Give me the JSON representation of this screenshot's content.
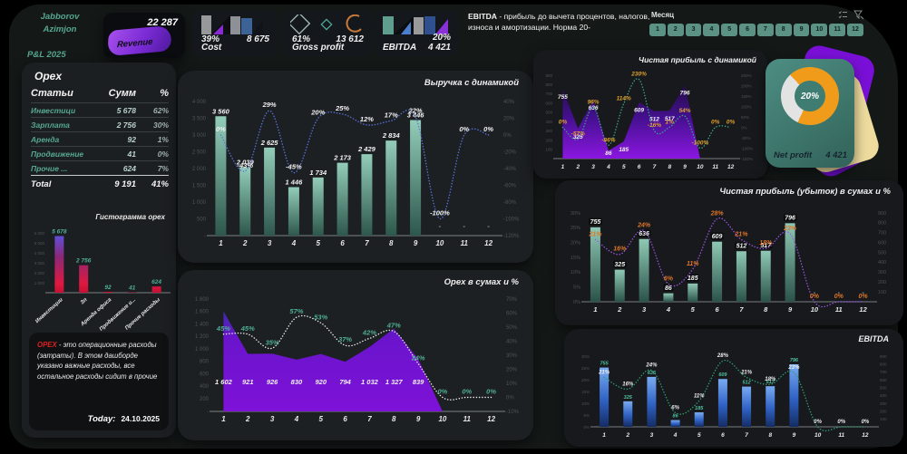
{
  "profile": {
    "name_line1": "Jabborov",
    "name_line2": "Azimjon",
    "subtitle": "P&L 2025"
  },
  "kpi": {
    "revenue": {
      "label": "Revenue",
      "value": "22 287"
    },
    "cost": {
      "label": "Cost",
      "pct": "39%",
      "value": "8 675"
    },
    "gross_profit": {
      "label": "Gross profit",
      "pct": "61%",
      "value": "13 612"
    },
    "ebitda": {
      "label": "EBITDA",
      "pct": "20%",
      "value": "4 421"
    }
  },
  "ebitda_note": {
    "term": "EBITDA",
    "text": " - прибыль до вычета процентов, налогов, износа и амортизации. Норма 20-"
  },
  "month_slicer": {
    "label": "Месяц",
    "options": [
      "1",
      "2",
      "3",
      "4",
      "5",
      "6",
      "7",
      "8",
      "9",
      "10",
      "11",
      "12"
    ]
  },
  "opex_table": {
    "title": "Opex",
    "columns": [
      "Статьи",
      "Сумм",
      "%"
    ],
    "rows": [
      [
        "Инвестици",
        "5 678",
        "62%"
      ],
      [
        "Зарплата",
        "2 756",
        "30%"
      ],
      [
        "Аренда",
        "92",
        "1%"
      ],
      [
        "Продвижение",
        "41",
        "0%"
      ],
      [
        "Прочие ...",
        "624",
        "7%"
      ]
    ],
    "total": [
      "Total",
      "9 191",
      "41%"
    ]
  },
  "opex_note": {
    "term": "OPEX",
    "text": " - это операционные расходы (затраты). В этом дашборде указано важные расходы, все остальное расходы сидит в прочие"
  },
  "today": {
    "label": "Today:",
    "date": "24.10.2025"
  },
  "net_profit_gauge": {
    "pct": "20%",
    "label": "Net profit",
    "value": "4 421"
  },
  "colors": {
    "accent_teal": "#5b9283",
    "accent_purple": "#7a10d8",
    "accent_orange": "#f09c1a",
    "accent_red": "#e02020"
  },
  "chart_data": {
    "revenue_dynamics": {
      "type": "bar",
      "title": "Выручка с динамикой",
      "categories": [
        "1",
        "2",
        "3",
        "4",
        "5",
        "6",
        "7",
        "8",
        "9",
        "10",
        "11",
        "12"
      ],
      "values": [
        3560,
        2039,
        2625,
        1446,
        1734,
        2173,
        2429,
        2834,
        3446,
        null,
        null,
        null
      ],
      "value_labels": [
        "3 560",
        "2 039",
        "2 625",
        "1 446",
        "1 734",
        "2 173",
        "2 429",
        "2 834",
        "3 446",
        "-",
        "-",
        "-"
      ],
      "line": [
        0,
        -43,
        29,
        -45,
        20,
        25,
        12,
        17,
        22,
        -100,
        0,
        0
      ],
      "line_labels": [
        "0%",
        "-43%",
        "29%",
        "-45%",
        "20%",
        "25%",
        "12%",
        "17%",
        "22%",
        "-100%",
        "0%",
        "0%"
      ],
      "left_ticks": [
        "4 000",
        "3 500",
        "3 000",
        "2 500",
        "2 000",
        "1 500",
        "1 000",
        "500",
        "-"
      ],
      "left_tick_values": [
        4000,
        3500,
        3000,
        2500,
        2000,
        1500,
        1000,
        500,
        0
      ],
      "right_ticks": [
        "40%",
        "20%",
        "0%",
        "-20%",
        "-40%",
        "-60%",
        "-80%",
        "-100%",
        "-120%"
      ],
      "right_tick_values": [
        40,
        20,
        0,
        -20,
        -40,
        -60,
        -80,
        -100,
        -120
      ],
      "ylim": [
        0,
        4000
      ],
      "line_ylim": [
        -120,
        40
      ]
    },
    "opex_sum": {
      "type": "area",
      "title": "Opex в сумах и %",
      "categories": [
        "1",
        "2",
        "3",
        "4",
        "5",
        "6",
        "7",
        "8",
        "9",
        "10",
        "11",
        "12"
      ],
      "values": [
        1602,
        921,
        926,
        830,
        920,
        794,
        1032,
        1327,
        839,
        0,
        0,
        0
      ],
      "value_labels": [
        "1 602",
        "921",
        "926",
        "830",
        "920",
        "794",
        "1 032",
        "1 327",
        "839",
        "",
        "",
        ""
      ],
      "line": [
        45,
        45,
        35,
        57,
        53,
        37,
        42,
        47,
        24,
        0,
        0,
        0
      ],
      "line_labels": [
        "45%",
        "45%",
        "35%",
        "57%",
        "53%",
        "37%",
        "42%",
        "47%",
        "24%",
        "0%",
        "0%",
        "0%"
      ],
      "left_ticks": [
        "1 800",
        "1 600",
        "1 400",
        "1 200",
        "1 000",
        "800",
        "600",
        "400",
        "200",
        "-"
      ],
      "left_tick_values": [
        1800,
        1600,
        1400,
        1200,
        1000,
        800,
        600,
        400,
        200,
        0
      ],
      "right_ticks": [
        "70%",
        "60%",
        "50%",
        "40%",
        "30%",
        "20%",
        "10%",
        "0%",
        "-10%"
      ],
      "right_tick_values": [
        70,
        60,
        50,
        40,
        30,
        20,
        10,
        0,
        -10
      ],
      "ylim": [
        0,
        1800
      ],
      "line_ylim": [
        -10,
        70
      ]
    },
    "net_profit_area": {
      "type": "area",
      "title": "Чистая прибыль с динамикой",
      "categories": [
        "1",
        "2",
        "3",
        "4",
        "5",
        "6",
        "7",
        "8",
        "9",
        "10",
        "11",
        "12"
      ],
      "values": [
        755,
        325,
        636,
        86,
        185,
        609,
        512,
        517,
        796,
        0,
        0,
        0
      ],
      "value_labels": [
        "755",
        "325",
        "636",
        "86",
        "185",
        "609",
        "512",
        "517",
        "796",
        "",
        "",
        ""
      ],
      "line": [
        0,
        -57,
        96,
        -86,
        114,
        230,
        -16,
        1,
        54,
        -100,
        0,
        0
      ],
      "line_labels": [
        "0%",
        "-57%",
        "96%",
        "-86%",
        "114%",
        "230%",
        "-16%",
        "1%",
        "54%",
        "-100%",
        "0%",
        "0%"
      ],
      "left_ticks": [
        "900",
        "800",
        "700",
        "600",
        "500",
        "400",
        "300",
        "200",
        "100"
      ],
      "left_tick_values": [
        900,
        800,
        700,
        600,
        500,
        400,
        300,
        200,
        100
      ],
      "right_ticks": [
        "250%",
        "200%",
        "150%",
        "100%",
        "50%",
        "0%",
        "-50%",
        "-100%",
        "-150%"
      ],
      "right_tick_values": [
        250,
        200,
        150,
        100,
        50,
        0,
        -50,
        -100,
        -150
      ],
      "ylim": [
        0,
        900
      ],
      "line_ylim": [
        -150,
        250
      ]
    },
    "net_profit_bars": {
      "type": "bar",
      "title": "Чистая прибыль (убыток) в сумах и %",
      "categories": [
        "1",
        "2",
        "3",
        "4",
        "5",
        "6",
        "7",
        "8",
        "9",
        "10",
        "11",
        "12"
      ],
      "values": [
        755,
        325,
        636,
        86,
        185,
        609,
        512,
        517,
        796,
        null,
        null,
        null
      ],
      "value_labels": [
        "755",
        "325",
        "636",
        "86",
        "185",
        "609",
        "512",
        "517",
        "796",
        "-",
        "-",
        "-"
      ],
      "line": [
        21,
        16,
        24,
        6,
        11,
        28,
        21,
        18,
        23,
        0,
        0,
        0
      ],
      "line_labels": [
        "21%",
        "16%",
        "24%",
        "6%",
        "11%",
        "28%",
        "21%",
        "18%",
        "23%",
        "0%",
        "0%",
        "0%"
      ],
      "left_ticks": [
        "30%",
        "25%",
        "20%",
        "15%",
        "10%",
        "5%",
        "0%"
      ],
      "left_tick_values": [
        30,
        25,
        20,
        15,
        10,
        5,
        0
      ],
      "right_ticks": [
        "900",
        "800",
        "700",
        "600",
        "500",
        "400",
        "300",
        "200",
        "100"
      ],
      "right_tick_values": [
        900,
        800,
        700,
        600,
        500,
        400,
        300,
        200,
        100
      ],
      "ylim": [
        0,
        900
      ],
      "line_ylim": [
        0,
        30
      ]
    },
    "ebitda_monthly": {
      "type": "bar",
      "title": "EBITDA",
      "categories": [
        "1",
        "2",
        "3",
        "4",
        "5",
        "6",
        "7",
        "8",
        "9",
        "10",
        "11",
        "12"
      ],
      "values": [
        755,
        325,
        636,
        86,
        185,
        609,
        512,
        517,
        796,
        null,
        null,
        null
      ],
      "value_labels": [
        "755",
        "325",
        "636",
        "86",
        "185",
        "609",
        "512",
        "517",
        "796",
        "",
        "",
        ""
      ],
      "line": [
        21,
        16,
        24,
        6,
        11,
        28,
        21,
        18,
        23,
        0,
        0,
        0
      ],
      "line_labels": [
        "21%",
        "16%",
        "24%",
        "6%",
        "11%",
        "28%",
        "21%",
        "18%",
        "23%",
        "0%",
        "0%",
        "0%"
      ],
      "left_ticks": [
        "30%",
        "25%",
        "20%",
        "15%",
        "10%",
        "5%",
        "0%"
      ],
      "left_tick_values": [
        30,
        25,
        20,
        15,
        10,
        5,
        0
      ],
      "right_ticks": [
        "900",
        "800",
        "700",
        "600",
        "500",
        "400",
        "300",
        "200",
        "100"
      ],
      "right_tick_values": [
        900,
        800,
        700,
        600,
        500,
        400,
        300,
        200,
        100
      ],
      "ylim": [
        0,
        900
      ],
      "line_ylim": [
        0,
        30
      ]
    },
    "opex_histogram": {
      "type": "bar",
      "title": "Гистограмма opex",
      "categories": [
        "Инвестиции",
        "Зп",
        "Аренда офиса",
        "Продвижение и...",
        "Прочие расходы"
      ],
      "values": [
        5678,
        2756,
        92,
        41,
        624
      ],
      "value_labels": [
        "5 678",
        "2 756",
        "92",
        "41",
        "624"
      ],
      "left_ticks": [
        "6 000",
        "5 000",
        "4 000",
        "3 000",
        "2 000",
        "1 000"
      ],
      "left_tick_values": [
        6000,
        5000,
        4000,
        3000,
        2000,
        1000
      ],
      "ylim": [
        0,
        6000
      ]
    }
  }
}
